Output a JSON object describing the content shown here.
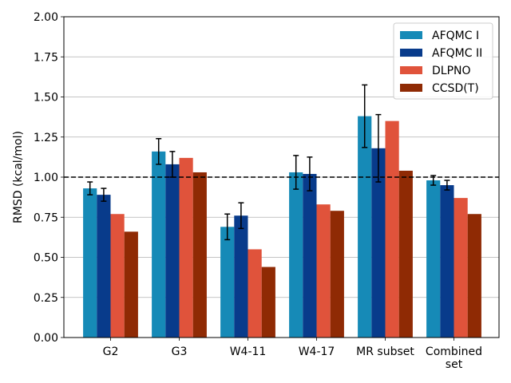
{
  "chart_data": {
    "type": "bar",
    "title": "",
    "xlabel": "",
    "ylabel": "RMSD (kcal/mol)",
    "ylim": [
      0,
      2.0
    ],
    "yticks": [
      "0.00",
      "0.25",
      "0.50",
      "0.75",
      "1.00",
      "1.25",
      "1.50",
      "1.75",
      "2.00"
    ],
    "ytick_values": [
      0,
      0.25,
      0.5,
      0.75,
      1.0,
      1.25,
      1.5,
      1.75,
      2.0
    ],
    "grid": "horizontal",
    "categories": [
      [
        "G2"
      ],
      [
        "G3"
      ],
      [
        "W4-11"
      ],
      [
        "W4-17"
      ],
      [
        "MR subset"
      ],
      [
        "Combined",
        "set"
      ]
    ],
    "series": [
      {
        "name": "AFQMC I",
        "color": "#168ab7",
        "values": [
          0.93,
          1.16,
          0.69,
          1.03,
          1.38,
          0.98
        ],
        "errors": [
          0.04,
          0.08,
          0.08,
          0.105,
          0.195,
          0.03
        ]
      },
      {
        "name": "AFQMC II",
        "color": "#083b8b",
        "values": [
          0.89,
          1.08,
          0.76,
          1.02,
          1.18,
          0.95
        ],
        "errors": [
          0.04,
          0.08,
          0.08,
          0.105,
          0.21,
          0.03
        ]
      },
      {
        "name": "DLPNO",
        "color": "#e0533b",
        "values": [
          0.77,
          1.12,
          0.55,
          0.83,
          1.35,
          0.87
        ],
        "errors": null
      },
      {
        "name": "CCSD(T)",
        "color": "#8f2a04",
        "values": [
          0.66,
          1.03,
          0.44,
          0.79,
          1.04,
          0.77
        ],
        "errors": null
      }
    ],
    "reference_line": {
      "y": 1.0,
      "style": "dashed",
      "color": "#000000"
    },
    "legend_position": "top-right"
  }
}
